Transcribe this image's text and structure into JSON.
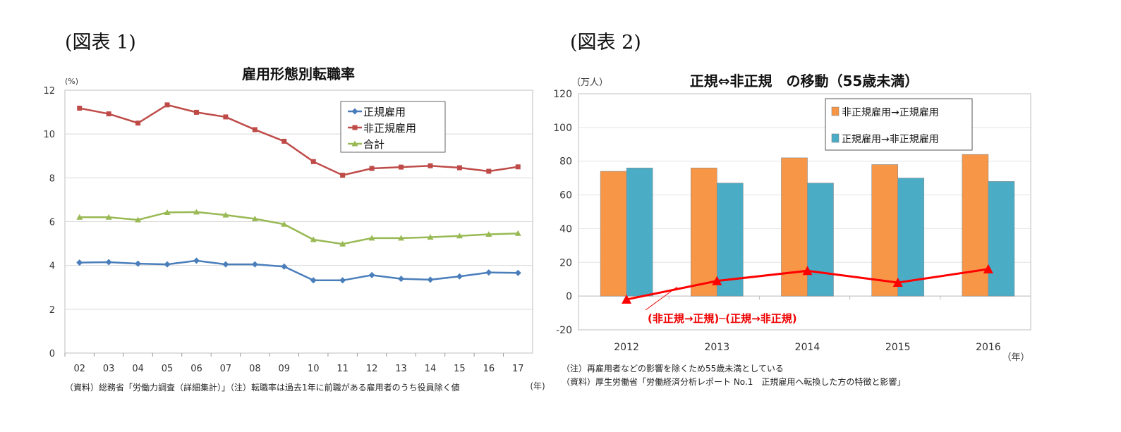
{
  "figures": {
    "fig1_label": "(図表 1)",
    "fig2_label": "(図表 2)"
  },
  "chart_data": [
    {
      "type": "line",
      "title": "雇用形態別転職率",
      "ylabel": "(%)",
      "xlabel": "(年)",
      "ylim": [
        0,
        12
      ],
      "yticks": [
        0,
        2,
        4,
        6,
        8,
        10,
        12
      ],
      "grid": true,
      "legend": "top-right",
      "categories": [
        "02",
        "03",
        "04",
        "05",
        "06",
        "07",
        "08",
        "09",
        "10",
        "11",
        "12",
        "13",
        "14",
        "15",
        "16",
        "17"
      ],
      "series": [
        {
          "name": "正規雇用",
          "color": "#4a7ebb",
          "marker": "diamond",
          "values": [
            4.13,
            4.15,
            4.08,
            4.05,
            4.22,
            4.05,
            4.05,
            3.95,
            3.32,
            3.32,
            3.56,
            3.39,
            3.35,
            3.5,
            3.68,
            3.66
          ]
        },
        {
          "name": "非正規雇用",
          "color": "#be4b48",
          "marker": "square",
          "values": [
            11.18,
            10.92,
            10.5,
            11.33,
            10.99,
            10.78,
            10.2,
            9.67,
            8.74,
            8.12,
            8.43,
            8.49,
            8.55,
            8.46,
            8.3,
            8.5
          ]
        },
        {
          "name": "合計",
          "color": "#98b954",
          "marker": "triangle",
          "values": [
            6.2,
            6.2,
            6.08,
            6.42,
            6.44,
            6.3,
            6.13,
            5.88,
            5.18,
            4.98,
            5.25,
            5.25,
            5.29,
            5.35,
            5.42,
            5.46
          ]
        }
      ],
      "footnote": "（資料）総務省「労働力調査（詳細集計）」（注）転職率は過去1年に前職がある雇用者のうち役員除く値"
    },
    {
      "type": "bar",
      "title": "正規⇔非正規　の移動（55歳未満）",
      "ylabel": "（万人）",
      "xlabel": "（年）",
      "ylim": [
        -20,
        120
      ],
      "yticks": [
        -20,
        0,
        20,
        40,
        60,
        80,
        100,
        120
      ],
      "grid": true,
      "legend": "top-right",
      "categories": [
        "2012",
        "2013",
        "2014",
        "2015",
        "2016"
      ],
      "series": [
        {
          "name": "非正規雇用→正規雇用",
          "color": "#f79646",
          "type": "bar",
          "values": [
            74,
            76,
            82,
            78,
            84
          ]
        },
        {
          "name": "正規雇用→非正規雇用",
          "color": "#4bacc6",
          "type": "bar",
          "values": [
            76,
            67,
            67,
            70,
            68
          ]
        },
        {
          "name": "(非正規→正規)─(正規→非正規)",
          "color": "#ff0000",
          "type": "line",
          "marker": "triangle",
          "values": [
            -2,
            9,
            15,
            8,
            16
          ]
        }
      ],
      "annotation": "(非正規→正規)─(正規→非正規)",
      "footnotes": [
        "（注）再雇用者などの影響を除くため55歳未満としている",
        "（資料）厚生労働省「労働経済分析レポート No.1　正規雇用へ転換した方の特徴と影響」"
      ]
    }
  ]
}
